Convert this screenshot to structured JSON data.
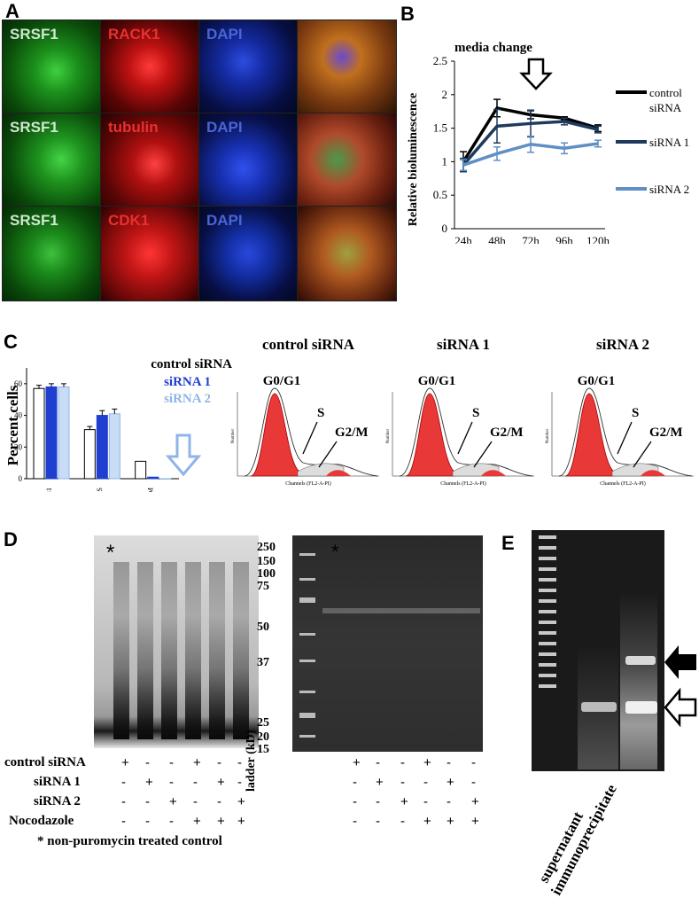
{
  "panels": {
    "A": "A",
    "B": "B",
    "C": "C",
    "D": "D",
    "E": "E"
  },
  "panel_a": {
    "rows": [
      {
        "labels": [
          "SRSF1",
          "RACK1",
          "DAPI"
        ]
      },
      {
        "labels": [
          "SRSF1",
          "tubulin",
          "DAPI"
        ]
      },
      {
        "labels": [
          "SRSF1",
          "CDK1",
          "DAPI"
        ]
      }
    ],
    "colors": {
      "green": "#1fa61f",
      "red": "#d81a1a",
      "blue": "#1c2fa8",
      "merge": "#c0701e"
    }
  },
  "panel_b": {
    "annotation": "media change",
    "ylabel": "Relative bioluminescence",
    "yticks": [
      "0",
      "0.5",
      "1",
      "1.5",
      "2",
      "2.5"
    ],
    "legend": [
      {
        "name": "control",
        "name2": "siRNA",
        "color": "#000000"
      },
      {
        "name": "siRNA 1",
        "color": "#1f3a5f"
      },
      {
        "name": "siRNA 2",
        "color": "#5f8fc4"
      }
    ]
  },
  "panel_c_bar": {
    "ylabel": "Percent cells",
    "yticks": [
      "0",
      "20",
      "40",
      "60"
    ],
    "legend": [
      {
        "name": "control siRNA",
        "color": "#000000"
      },
      {
        "name": "siRNA 1",
        "color": "#1f3fd0"
      },
      {
        "name": "siRNA 2",
        "color": "#8fb4e8"
      }
    ]
  },
  "panel_c_flow": [
    {
      "title": "control siRNA",
      "g": "G0/G1",
      "s": "S",
      "m": "G2/M",
      "xlabel": "Channels (FL2-A-PI)",
      "ylabel": "Number"
    },
    {
      "title": "siRNA 1",
      "g": "G0/G1",
      "s": "S",
      "m": "G2/M",
      "xlabel": "Channels (FL2-A-PI)",
      "ylabel": "Number"
    },
    {
      "title": "siRNA 2",
      "g": "G0/G1",
      "s": "S",
      "m": "G2/M",
      "xlabel": "Channels (FL2-A-PI)",
      "ylabel": "Number"
    }
  ],
  "panel_d": {
    "asterisk": "*",
    "ladder_marks": [
      "250",
      "150",
      "100",
      "75",
      "50",
      "37",
      "25",
      "20",
      "15"
    ],
    "ladder_label": "ladder (kD)",
    "treatments": [
      {
        "name": "control siRNA",
        "signs": [
          "+",
          "-",
          "-",
          "+",
          "-",
          "-"
        ]
      },
      {
        "name": "siRNA 1",
        "signs": [
          "-",
          "+",
          "-",
          "-",
          "+",
          "-"
        ]
      },
      {
        "name": "siRNA 2",
        "signs": [
          "-",
          "-",
          "+",
          "-",
          "-",
          "+"
        ]
      },
      {
        "name": "Nocodazole",
        "signs": [
          "-",
          "-",
          "-",
          "+",
          "+",
          "+"
        ]
      }
    ],
    "footnote": "* non-puromycin treated control"
  },
  "panel_e": {
    "lanes": [
      "supernatant",
      "immunoprecipitate"
    ]
  },
  "chart_data": [
    {
      "type": "line",
      "title": "",
      "xlabel": "",
      "ylabel": "Relative bioluminescence",
      "categories": [
        "24h",
        "48h",
        "72h",
        "96h",
        "120h"
      ],
      "ylim": [
        0,
        2.5
      ],
      "series": [
        {
          "name": "control siRNA",
          "values": [
            1.0,
            1.8,
            1.7,
            1.65,
            1.5
          ],
          "err": [
            0.15,
            0.13,
            0.06,
            0.02,
            0.05
          ]
        },
        {
          "name": "siRNA 1",
          "values": [
            0.95,
            1.53,
            1.57,
            1.6,
            1.48
          ],
          "err": [
            0.1,
            0.25,
            0.2,
            0.05,
            0.05
          ]
        },
        {
          "name": "siRNA 2",
          "values": [
            0.95,
            1.12,
            1.26,
            1.2,
            1.27
          ],
          "err": [
            0.08,
            0.1,
            0.12,
            0.08,
            0.05
          ]
        }
      ]
    },
    {
      "type": "bar",
      "title": "",
      "xlabel": "",
      "ylabel": "Percent cells",
      "categories": [
        "G0/G1",
        "S",
        "G2/M"
      ],
      "ylim": [
        0,
        70
      ],
      "series": [
        {
          "name": "control siRNA",
          "values": [
            57,
            31,
            11
          ],
          "err": [
            2,
            2,
            0
          ]
        },
        {
          "name": "siRNA 1",
          "values": [
            58,
            40,
            1
          ],
          "err": [
            2,
            3,
            0
          ]
        },
        {
          "name": "siRNA 2",
          "values": [
            58,
            41,
            0
          ],
          "err": [
            2,
            3,
            0
          ]
        }
      ]
    }
  ]
}
